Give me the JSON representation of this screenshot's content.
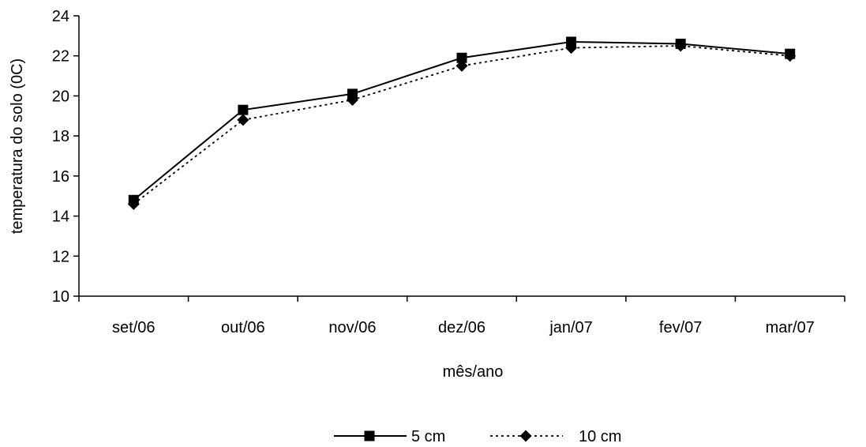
{
  "chart_data": {
    "type": "line",
    "title": "",
    "xlabel": "mês/ano",
    "ylabel": "temperatura do solo (0C)",
    "categories": [
      "set/06",
      "out/06",
      "nov/06",
      "dez/06",
      "jan/07",
      "fev/07",
      "mar/07"
    ],
    "ylim": [
      10,
      24
    ],
    "yticks": [
      "10",
      "12",
      "14",
      "16",
      "18",
      "20",
      "22",
      "24"
    ],
    "grid": false,
    "legend_position": "bottom",
    "series": [
      {
        "name": "5 cm",
        "values": [
          14.8,
          19.3,
          20.1,
          21.9,
          22.7,
          22.6,
          22.1
        ],
        "color": "#000000",
        "line": "solid",
        "marker": "square"
      },
      {
        "name": "10 cm",
        "values": [
          14.6,
          18.8,
          19.8,
          21.5,
          22.4,
          22.5,
          22.0
        ],
        "color": "#000000",
        "line": "dotted",
        "marker": "diamond"
      }
    ]
  }
}
